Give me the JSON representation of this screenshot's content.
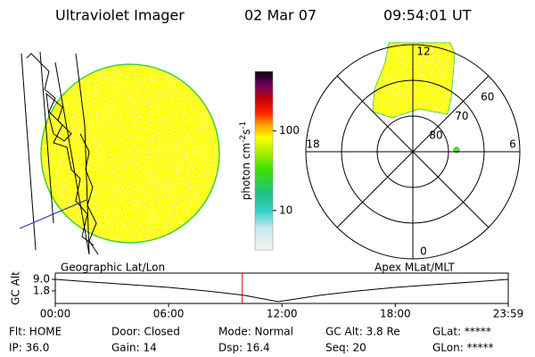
{
  "header": {
    "title": "Ultraviolet Imager",
    "date": "02 Mar 07",
    "time": "09:54:01 UT"
  },
  "colorbar": {
    "label": {
      "base": "photon cm",
      "exp1": "-2",
      "mid": "s",
      "exp2": "-1"
    },
    "clim": [
      3.2,
      560
    ],
    "ticks": [
      10,
      100
    ],
    "log": true
  },
  "left_panel": {
    "caption": "Geographic Lat/Lon"
  },
  "polar": {
    "caption": "Apex MLat/MLT",
    "mlt_labels": [
      12,
      18,
      6,
      0
    ],
    "lat_rings": [
      80,
      70,
      60
    ]
  },
  "altitude": {
    "ylabel": "GC Alt",
    "x": [
      0,
      2,
      4,
      6,
      8,
      10,
      11.8,
      14,
      16,
      18,
      20,
      22,
      23.98
    ],
    "values": [
      9.0,
      7.3,
      5.7,
      4.0,
      1.8,
      -0.9,
      -4.9,
      -0.9,
      1.8,
      4.0,
      5.7,
      7.3,
      9.0
    ],
    "xlim": [
      0,
      23.98
    ],
    "ylim": [
      -6.0,
      12.9
    ],
    "yticks": [
      {
        "value": 9,
        "label": "9.0"
      },
      1.8
    ],
    "xticks": [
      {
        "value": 0,
        "label": "00:00"
      },
      {
        "value": 6,
        "label": "06:00"
      },
      {
        "value": 12,
        "label": "12:00"
      },
      {
        "value": 18,
        "label": "18:00"
      },
      {
        "value": 23.98,
        "label": "23:59"
      }
    ],
    "marker": 9.9,
    "marker_color": "#e00000",
    "color": "#000000"
  },
  "status": {
    "rows": [
      [
        "Flt: HOME",
        "Door: Closed",
        "Mode: Normal",
        "GC Alt: 3.8 Re",
        "GLat: *****"
      ],
      [
        "IP: 36.0",
        "Gain: 14",
        "Dsp: 16.4",
        "Seq: 20",
        "GLon: *****"
      ]
    ]
  }
}
